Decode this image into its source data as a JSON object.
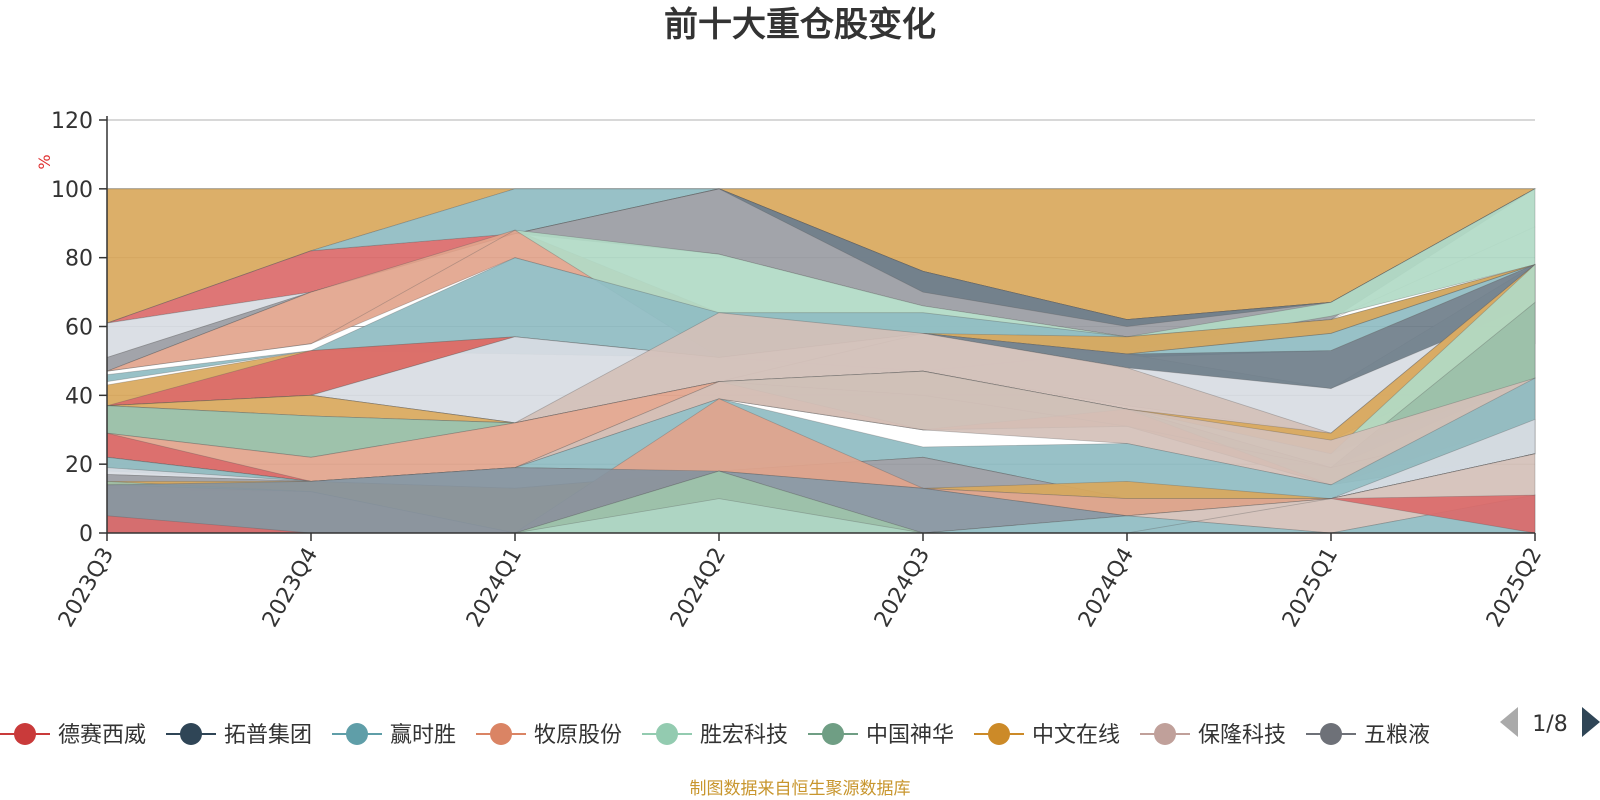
{
  "chart_data": {
    "type": "area",
    "title": "前十大重仓股变化",
    "ylabel": "%",
    "ylim": [
      0,
      120
    ],
    "yticks": [
      0,
      20,
      40,
      60,
      80,
      100,
      120
    ],
    "categories": [
      "2023Q3",
      "2023Q4",
      "2024Q1",
      "2024Q2",
      "2024Q3",
      "2024Q4",
      "2025Q1",
      "2025Q2"
    ],
    "bands": [
      {
        "color": "#d9a85c",
        "lower": [
          61,
          82,
          100,
          100,
          76,
          62,
          67,
          100
        ],
        "upper": [
          100,
          100,
          100,
          100,
          100,
          100,
          100,
          100
        ]
      },
      {
        "color": "#db6a6a",
        "lower": [
          61,
          70,
          87,
          100,
          76,
          62,
          67,
          100
        ],
        "upper": [
          61,
          82,
          87,
          100,
          76,
          62,
          67,
          100
        ]
      },
      {
        "color": "#8fbcc2",
        "lower": [
          61,
          82,
          87,
          100,
          76,
          62,
          67,
          100
        ],
        "upper": [
          61,
          82,
          100,
          100,
          76,
          62,
          67,
          100
        ]
      },
      {
        "color": "#d8dce3",
        "lower": [
          51,
          70,
          87,
          100,
          76,
          62,
          67,
          100
        ],
        "upper": [
          61,
          70,
          87,
          100,
          76,
          62,
          67,
          100
        ]
      },
      {
        "color": "#9a9ca3",
        "lower": [
          47,
          70,
          87,
          81,
          66,
          57,
          62,
          100
        ],
        "upper": [
          51,
          70,
          87,
          100,
          76,
          62,
          67,
          100
        ]
      },
      {
        "color": "#6f7e8a",
        "lower": [
          47,
          70,
          87,
          100,
          70,
          60,
          67,
          100
        ],
        "upper": [
          47,
          70,
          87,
          100,
          76,
          62,
          67,
          100
        ]
      },
      {
        "color": "#e2a48c",
        "lower": [
          47,
          55,
          80,
          64,
          64,
          57,
          62,
          89
        ],
        "upper": [
          47,
          70,
          88,
          64,
          64,
          57,
          62,
          89
        ]
      },
      {
        "color": "#b1dac6",
        "lower": [
          47,
          55,
          88,
          51,
          47,
          53,
          63,
          78
        ],
        "upper": [
          47,
          55,
          88,
          81,
          66,
          57,
          67,
          100
        ]
      },
      {
        "color": "#8fbcc2",
        "lower": [
          44,
          53,
          52,
          51,
          58,
          51,
          53,
          78
        ],
        "upper": [
          46,
          53,
          80,
          64,
          64,
          57,
          62,
          78
        ]
      },
      {
        "color": "#d9a85c",
        "lower": [
          37,
          40,
          57,
          51,
          58,
          52,
          58,
          78
        ],
        "upper": [
          43,
          53,
          57,
          51,
          58,
          57,
          62,
          78
        ]
      },
      {
        "color": "#db6a6a",
        "lower": [
          37,
          40,
          57,
          51,
          58,
          52,
          58,
          78
        ],
        "upper": [
          37,
          53,
          57,
          51,
          58,
          52,
          58,
          78
        ]
      },
      {
        "color": "#d8dce3",
        "lower": [
          37,
          40,
          32,
          44,
          47,
          37,
          29,
          78
        ],
        "upper": [
          37,
          40,
          57,
          51,
          58,
          52,
          42,
          78
        ]
      },
      {
        "color": "#6f7e8a",
        "lower": [
          37,
          40,
          32,
          44,
          58,
          48,
          42,
          67
        ],
        "upper": [
          37,
          40,
          32,
          44,
          58,
          52,
          53,
          78
        ]
      },
      {
        "color": "#d4c0b8",
        "lower": [
          37,
          40,
          32,
          44,
          47,
          36,
          27,
          55
        ],
        "upper": [
          37,
          40,
          32,
          64,
          58,
          48,
          29,
          78
        ]
      },
      {
        "color": "#d9a85c",
        "lower": [
          37,
          34,
          32,
          44,
          47,
          36,
          23,
          45
        ],
        "upper": [
          37,
          40,
          32,
          44,
          47,
          36,
          29,
          78
        ]
      },
      {
        "color": "#b1dac6",
        "lower": [
          29,
          22,
          32,
          44,
          47,
          36,
          19,
          45
        ],
        "upper": [
          37,
          34,
          32,
          44,
          47,
          36,
          23,
          78
        ]
      },
      {
        "color": "#9bbfa8",
        "lower": [
          29,
          22,
          32,
          44,
          30,
          31,
          14,
          45
        ],
        "upper": [
          37,
          34,
          32,
          44,
          47,
          36,
          19,
          67
        ]
      },
      {
        "color": "#e2a48c",
        "lower": [
          22,
          15,
          19,
          39,
          30,
          31,
          14,
          33
        ],
        "upper": [
          29,
          22,
          32,
          44,
          30,
          36,
          14,
          45
        ]
      },
      {
        "color": "#db6a6a",
        "lower": [
          22,
          15,
          19,
          39,
          30,
          31,
          14,
          33
        ],
        "upper": [
          29,
          15,
          19,
          39,
          30,
          31,
          14,
          33
        ]
      },
      {
        "color": "#6f7e8a",
        "lower": [
          22,
          15,
          19,
          44,
          40,
          31,
          19,
          33
        ],
        "upper": [
          22,
          15,
          19,
          44,
          40,
          31,
          19,
          33
        ]
      },
      {
        "color": "#d4c0b8",
        "lower": [
          19,
          15,
          19,
          39,
          30,
          26,
          14,
          23
        ],
        "upper": [
          22,
          15,
          19,
          44,
          47,
          36,
          27,
          45
        ]
      },
      {
        "color": "#8fbcc2",
        "lower": [
          18,
          15,
          19,
          18,
          22,
          10,
          10,
          23
        ],
        "upper": [
          22,
          15,
          19,
          39,
          25,
          26,
          14,
          45
        ]
      },
      {
        "color": "#d8dce3",
        "lower": [
          17,
          15,
          13,
          18,
          22,
          10,
          10,
          23
        ],
        "upper": [
          19,
          15,
          19,
          18,
          22,
          10,
          10,
          33
        ]
      },
      {
        "color": "#9a9ca3",
        "lower": [
          14,
          15,
          13,
          18,
          13,
          10,
          10,
          23
        ],
        "upper": [
          17,
          15,
          13,
          18,
          22,
          10,
          10,
          23
        ]
      },
      {
        "color": "#d9a85c",
        "lower": [
          13,
          12,
          0,
          18,
          13,
          5,
          10,
          23
        ],
        "upper": [
          15,
          15,
          13,
          18,
          13,
          15,
          10,
          23
        ]
      },
      {
        "color": "#9bbfa8",
        "lower": [
          13,
          12,
          0,
          18,
          13,
          5,
          10,
          23
        ],
        "upper": [
          15,
          12,
          0,
          18,
          13,
          10,
          10,
          23
        ]
      },
      {
        "color": "#e2a48c",
        "lower": [
          5,
          0,
          0,
          18,
          13,
          5,
          10,
          23
        ],
        "upper": [
          14,
          12,
          0,
          39,
          13,
          10,
          10,
          23
        ]
      },
      {
        "color": "#84929e",
        "lower": [
          0,
          0,
          0,
          0,
          0,
          5,
          10,
          23
        ],
        "upper": [
          14,
          15,
          19,
          18,
          13,
          5,
          10,
          23
        ]
      },
      {
        "color": "#d4c0b8",
        "lower": [
          0,
          0,
          0,
          0,
          0,
          5,
          0,
          11
        ],
        "upper": [
          0,
          0,
          0,
          0,
          0,
          5,
          10,
          23
        ]
      },
      {
        "color": "#8fbcc2",
        "lower": [
          0,
          0,
          0,
          0,
          0,
          0,
          0,
          0
        ],
        "upper": [
          0,
          0,
          0,
          0,
          0,
          5,
          0,
          11
        ]
      },
      {
        "color": "#b1dac6",
        "lower": [
          0,
          0,
          0,
          0,
          0,
          0,
          0,
          0
        ],
        "upper": [
          0,
          0,
          0,
          18,
          0,
          0,
          0,
          0
        ]
      },
      {
        "color": "#9bbfa8",
        "lower": [
          0,
          0,
          0,
          10,
          0,
          0,
          0,
          0
        ],
        "upper": [
          0,
          0,
          0,
          18,
          0,
          0,
          0,
          0
        ]
      },
      {
        "color": "#db6a6a",
        "lower": [
          0,
          0,
          0,
          0,
          0,
          0,
          10,
          0
        ],
        "upper": [
          5,
          0,
          0,
          0,
          0,
          0,
          10,
          11
        ]
      }
    ],
    "grid": true,
    "legend_position": "bottom"
  },
  "legend": {
    "items": [
      {
        "name": "德赛西威",
        "color": "#c93a3a"
      },
      {
        "name": "拓普集团",
        "color": "#2f4556"
      },
      {
        "name": "赢时胜",
        "color": "#5f9ea8"
      },
      {
        "name": "牧原股份",
        "color": "#da8464"
      },
      {
        "name": "胜宏科技",
        "color": "#93cbb0"
      },
      {
        "name": "中国神华",
        "color": "#6f9e84"
      },
      {
        "name": "中文在线",
        "color": "#cc8a28"
      },
      {
        "name": "保隆科技",
        "color": "#c0a09a"
      },
      {
        "name": "五粮液",
        "color": "#6e7178"
      }
    ],
    "page_indicator": "1/8",
    "prev_color": "#aaaaaa",
    "next_color": "#2f4556"
  },
  "footer": {
    "source_text": "制图数据来自恒生聚源数据库"
  }
}
